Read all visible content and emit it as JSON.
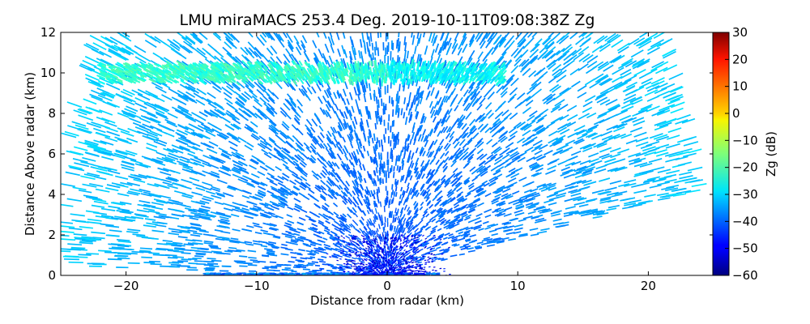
{
  "chart_data": {
    "type": "heatmap",
    "title": "LMU miraMACS 253.4 Deg. 2019-10-11T09:08:38Z  Zg",
    "xlabel": "Distance from radar (km)",
    "ylabel": "Distance Above radar  (km)",
    "xlim": [
      -25,
      25
    ],
    "ylim": [
      0,
      12
    ],
    "x_ticks": [
      -20,
      -10,
      0,
      10,
      20
    ],
    "x_tick_labels": [
      "−20",
      "−10",
      "0",
      "10",
      "20"
    ],
    "y_ticks": [
      0,
      2,
      4,
      6,
      8,
      10,
      12
    ],
    "y_tick_labels": [
      "0",
      "2",
      "4",
      "6",
      "8",
      "10",
      "12"
    ],
    "colorbar": {
      "label": "Zg (dB)",
      "range": [
        -60,
        30
      ],
      "colormap": "jet",
      "ticks": [
        -60,
        -50,
        -40,
        -30,
        -20,
        -10,
        0,
        10,
        20,
        30
      ],
      "tick_labels": [
        "−60",
        "−50",
        "−40",
        "−30",
        "−20",
        "−10",
        "0",
        "10",
        "20",
        "30"
      ]
    },
    "scan": {
      "elevation_left_min_deg": 1,
      "elevation_right_min_deg": 10,
      "max_range_left_km": 25,
      "max_range_right_km": 24
    },
    "features": [
      {
        "name": "cirrus-layer",
        "x_range": [
          -22,
          9
        ],
        "height_km": 10,
        "zg_db": -22
      },
      {
        "name": "near-radar-noise",
        "x_range": [
          -3,
          3
        ],
        "height_range": [
          0,
          2
        ],
        "zg_db": -50
      },
      {
        "name": "background-noise",
        "zg_db": -30
      }
    ]
  }
}
